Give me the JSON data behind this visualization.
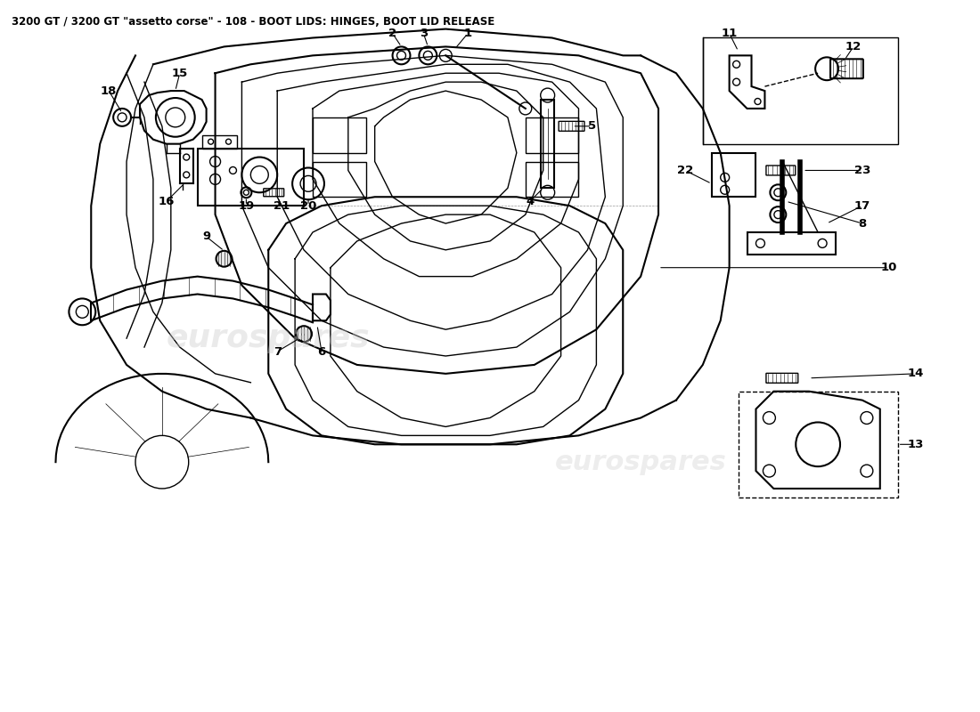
{
  "title": "3200 GT / 3200 GT \"assetto corse\" - 108 - BOOT LIDS: HINGES, BOOT LID RELEASE",
  "bg": "#ffffff",
  "lc": "#000000",
  "wm": "#cccccc",
  "wm_text": "eurospares",
  "fig_w": 11.0,
  "fig_h": 8.0,
  "dpi": 100,
  "title_fs": 8.5,
  "label_fs": 9.5,
  "lw": 1.0,
  "lw2": 1.5
}
